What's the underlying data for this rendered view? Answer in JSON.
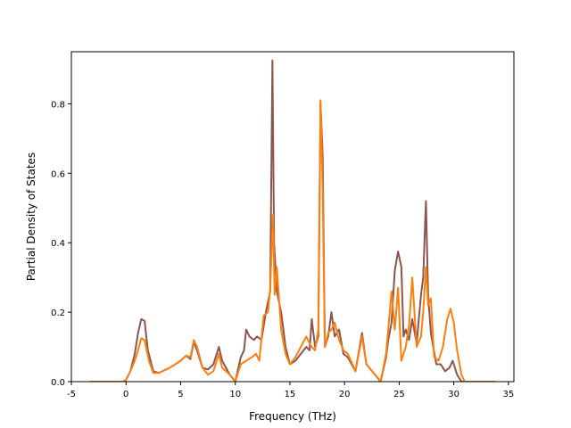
{
  "chart_data": {
    "type": "line",
    "title": "",
    "xlabel": "Frequency (THz)",
    "ylabel": "Partial Density of States",
    "xlim": [
      -5,
      35.5
    ],
    "ylim": [
      0,
      0.95
    ],
    "xticks": [
      -5,
      0,
      5,
      10,
      15,
      20,
      25,
      30,
      35
    ],
    "yticks": [
      0.0,
      0.2,
      0.4,
      0.6,
      0.8
    ],
    "ytick_labels": [
      "0.0",
      "0.2",
      "0.4",
      "0.6",
      "0.8"
    ],
    "grid": false,
    "legend": "none",
    "series": [
      {
        "color": "#8c564b",
        "points": [
          [
            -3.3,
            0.0
          ],
          [
            -0.3,
            0.0
          ],
          [
            0.0,
            0.005
          ],
          [
            0.4,
            0.03
          ],
          [
            0.8,
            0.08
          ],
          [
            1.1,
            0.14
          ],
          [
            1.4,
            0.18
          ],
          [
            1.7,
            0.175
          ],
          [
            2.0,
            0.09
          ],
          [
            2.5,
            0.03
          ],
          [
            3.0,
            0.025
          ],
          [
            4.0,
            0.04
          ],
          [
            5.0,
            0.06
          ],
          [
            5.5,
            0.075
          ],
          [
            5.9,
            0.065
          ],
          [
            6.2,
            0.115
          ],
          [
            6.5,
            0.09
          ],
          [
            7.0,
            0.04
          ],
          [
            7.5,
            0.035
          ],
          [
            8.0,
            0.05
          ],
          [
            8.5,
            0.1
          ],
          [
            8.8,
            0.06
          ],
          [
            9.5,
            0.02
          ],
          [
            10.0,
            0.0
          ],
          [
            10.5,
            0.07
          ],
          [
            10.8,
            0.09
          ],
          [
            11.0,
            0.15
          ],
          [
            11.3,
            0.13
          ],
          [
            11.7,
            0.12
          ],
          [
            12.0,
            0.13
          ],
          [
            12.4,
            0.12
          ],
          [
            12.8,
            0.2
          ],
          [
            13.2,
            0.26
          ],
          [
            13.4,
            0.925
          ],
          [
            13.55,
            0.4
          ],
          [
            13.8,
            0.26
          ],
          [
            14.2,
            0.2
          ],
          [
            14.6,
            0.1
          ],
          [
            15.0,
            0.05
          ],
          [
            15.5,
            0.06
          ],
          [
            16.0,
            0.08
          ],
          [
            16.5,
            0.1
          ],
          [
            16.8,
            0.09
          ],
          [
            17.0,
            0.18
          ],
          [
            17.3,
            0.1
          ],
          [
            17.6,
            0.13
          ],
          [
            17.8,
            0.8
          ],
          [
            18.0,
            0.65
          ],
          [
            18.2,
            0.1
          ],
          [
            18.5,
            0.13
          ],
          [
            18.8,
            0.2
          ],
          [
            19.1,
            0.13
          ],
          [
            19.5,
            0.15
          ],
          [
            19.9,
            0.08
          ],
          [
            20.3,
            0.07
          ],
          [
            21.0,
            0.03
          ],
          [
            21.6,
            0.14
          ],
          [
            22.0,
            0.05
          ],
          [
            22.8,
            0.02
          ],
          [
            23.3,
            0.0
          ],
          [
            23.8,
            0.07
          ],
          [
            24.0,
            0.12
          ],
          [
            24.3,
            0.17
          ],
          [
            24.6,
            0.32
          ],
          [
            24.9,
            0.375
          ],
          [
            25.2,
            0.33
          ],
          [
            25.4,
            0.13
          ],
          [
            25.6,
            0.15
          ],
          [
            25.9,
            0.12
          ],
          [
            26.2,
            0.18
          ],
          [
            26.6,
            0.11
          ],
          [
            27.0,
            0.25
          ],
          [
            27.2,
            0.3
          ],
          [
            27.45,
            0.52
          ],
          [
            27.65,
            0.25
          ],
          [
            27.9,
            0.14
          ],
          [
            28.4,
            0.05
          ],
          [
            28.8,
            0.05
          ],
          [
            29.2,
            0.03
          ],
          [
            29.6,
            0.04
          ],
          [
            29.9,
            0.06
          ],
          [
            30.3,
            0.02
          ],
          [
            30.7,
            0.0
          ],
          [
            33.8,
            0.0
          ]
        ]
      },
      {
        "color": "#ff7f0e",
        "points": [
          [
            -3.3,
            0.0
          ],
          [
            -0.3,
            0.0
          ],
          [
            0.0,
            0.005
          ],
          [
            0.4,
            0.03
          ],
          [
            0.8,
            0.06
          ],
          [
            1.1,
            0.09
          ],
          [
            1.4,
            0.125
          ],
          [
            1.7,
            0.12
          ],
          [
            2.1,
            0.06
          ],
          [
            2.5,
            0.025
          ],
          [
            3.0,
            0.025
          ],
          [
            4.0,
            0.04
          ],
          [
            5.0,
            0.06
          ],
          [
            5.5,
            0.075
          ],
          [
            5.9,
            0.07
          ],
          [
            6.2,
            0.12
          ],
          [
            6.5,
            0.1
          ],
          [
            7.0,
            0.04
          ],
          [
            7.5,
            0.02
          ],
          [
            8.0,
            0.03
          ],
          [
            8.5,
            0.08
          ],
          [
            8.8,
            0.04
          ],
          [
            9.5,
            0.02
          ],
          [
            10.0,
            0.0
          ],
          [
            10.5,
            0.05
          ],
          [
            11.0,
            0.06
          ],
          [
            11.5,
            0.07
          ],
          [
            11.9,
            0.08
          ],
          [
            12.2,
            0.06
          ],
          [
            12.6,
            0.19
          ],
          [
            13.0,
            0.2
          ],
          [
            13.2,
            0.27
          ],
          [
            13.45,
            0.48
          ],
          [
            13.6,
            0.25
          ],
          [
            13.8,
            0.33
          ],
          [
            14.2,
            0.15
          ],
          [
            14.6,
            0.08
          ],
          [
            15.0,
            0.05
          ],
          [
            15.5,
            0.07
          ],
          [
            16.0,
            0.1
          ],
          [
            16.5,
            0.13
          ],
          [
            16.8,
            0.11
          ],
          [
            17.0,
            0.1
          ],
          [
            17.3,
            0.09
          ],
          [
            17.6,
            0.15
          ],
          [
            17.8,
            0.81
          ],
          [
            18.0,
            0.55
          ],
          [
            18.2,
            0.1
          ],
          [
            18.5,
            0.14
          ],
          [
            18.8,
            0.15
          ],
          [
            19.1,
            0.17
          ],
          [
            19.5,
            0.12
          ],
          [
            19.9,
            0.09
          ],
          [
            20.3,
            0.08
          ],
          [
            21.0,
            0.03
          ],
          [
            21.6,
            0.13
          ],
          [
            22.0,
            0.05
          ],
          [
            22.8,
            0.02
          ],
          [
            23.3,
            0.0
          ],
          [
            23.8,
            0.08
          ],
          [
            24.0,
            0.15
          ],
          [
            24.3,
            0.26
          ],
          [
            24.6,
            0.15
          ],
          [
            24.9,
            0.27
          ],
          [
            25.2,
            0.06
          ],
          [
            25.6,
            0.1
          ],
          [
            25.9,
            0.16
          ],
          [
            26.2,
            0.3
          ],
          [
            26.6,
            0.1
          ],
          [
            27.0,
            0.13
          ],
          [
            27.2,
            0.2
          ],
          [
            27.45,
            0.33
          ],
          [
            27.65,
            0.22
          ],
          [
            27.9,
            0.24
          ],
          [
            28.2,
            0.07
          ],
          [
            28.6,
            0.06
          ],
          [
            29.0,
            0.1
          ],
          [
            29.4,
            0.18
          ],
          [
            29.7,
            0.21
          ],
          [
            30.0,
            0.17
          ],
          [
            30.3,
            0.09
          ],
          [
            30.7,
            0.02
          ],
          [
            31.0,
            0.0
          ],
          [
            33.8,
            0.0
          ]
        ]
      }
    ]
  }
}
